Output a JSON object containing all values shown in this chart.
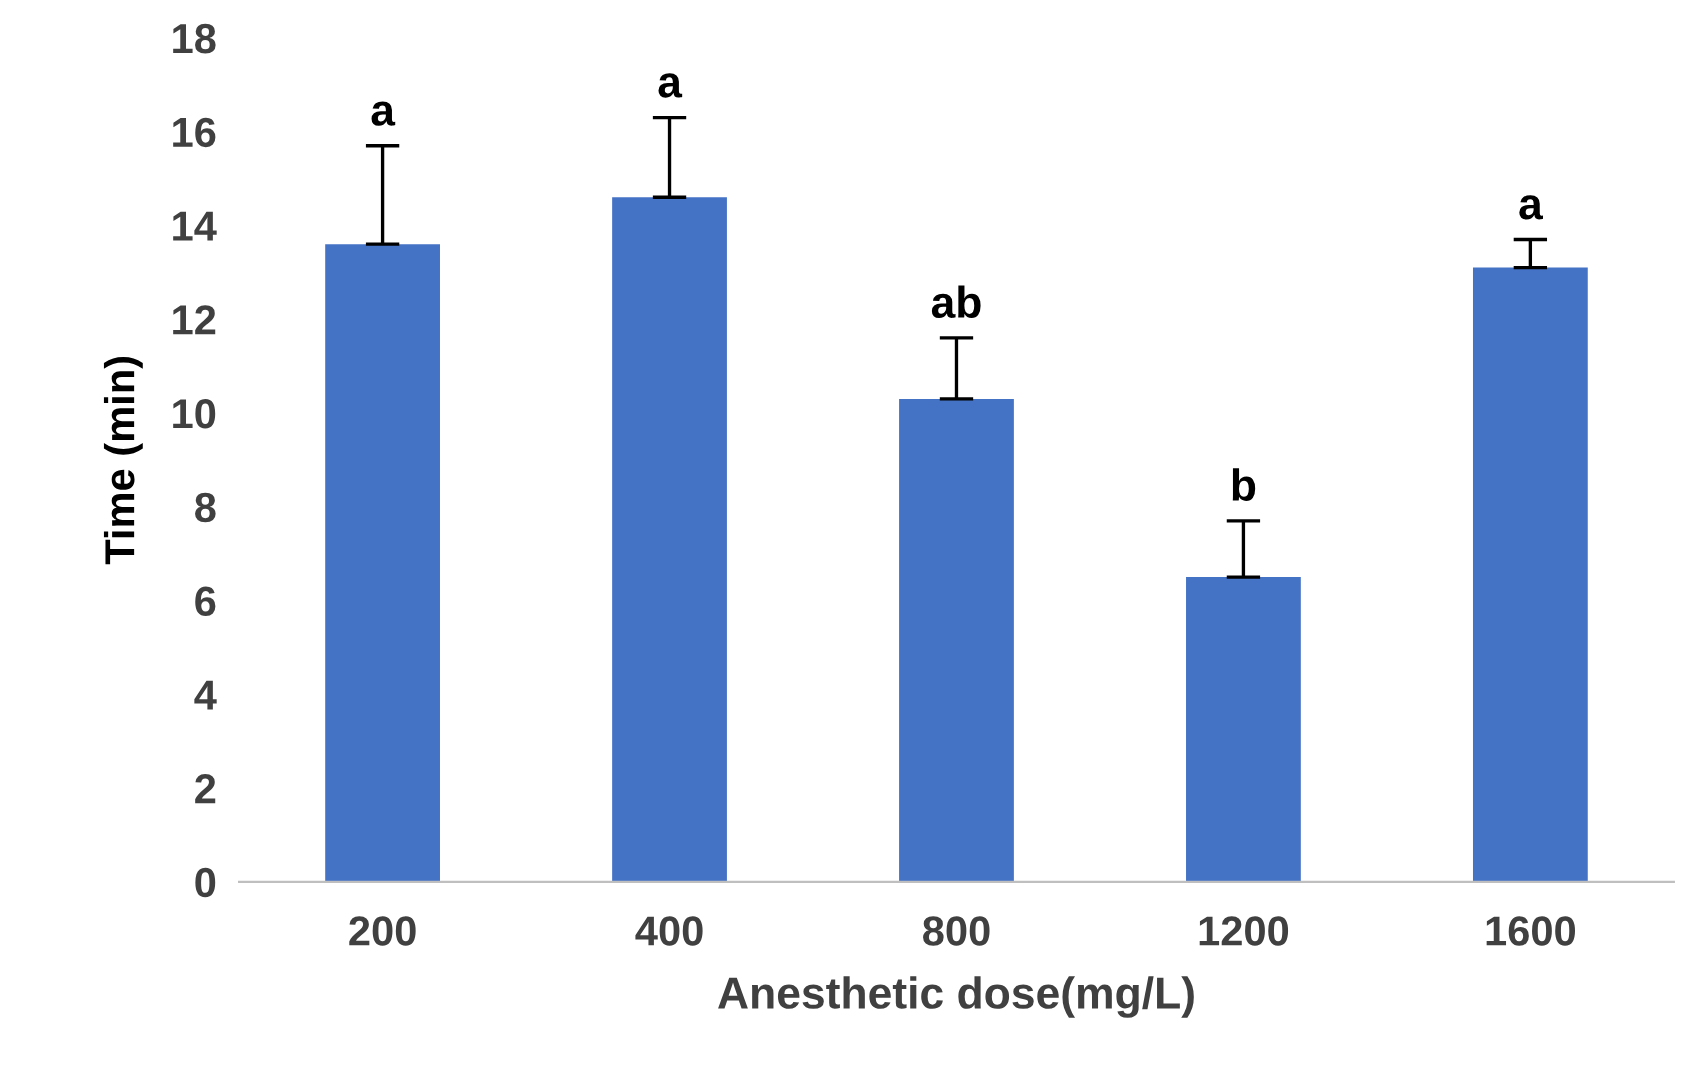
{
  "chart_data": {
    "type": "bar",
    "xlabel": "Anesthetic dose(mg/L)",
    "ylabel": "Time (min)",
    "categories": [
      "200",
      "400",
      "800",
      "1200",
      "1600"
    ],
    "values": [
      13.6,
      14.6,
      10.3,
      6.5,
      13.1
    ],
    "errors": [
      [
        13.6,
        15.7
      ],
      [
        14.6,
        16.3
      ],
      [
        10.3,
        11.6
      ],
      [
        6.5,
        7.7
      ],
      [
        13.1,
        13.7
      ]
    ],
    "color": "#4472c4",
    "ylim": [
      0,
      18
    ],
    "yticks": [
      0,
      2,
      4,
      6,
      8,
      10,
      12,
      14,
      16,
      18
    ],
    "annotations": [
      {
        "text": "a",
        "x": "200",
        "y": 15.7
      },
      {
        "text": "a",
        "x": "400",
        "y": 16.3
      },
      {
        "text": "ab",
        "x": "800",
        "y": 11.6
      },
      {
        "text": "b",
        "x": "1200",
        "y": 7.7
      },
      {
        "text": "a",
        "x": "1600",
        "y": 13.7
      }
    ],
    "grid": false,
    "legend": false
  }
}
